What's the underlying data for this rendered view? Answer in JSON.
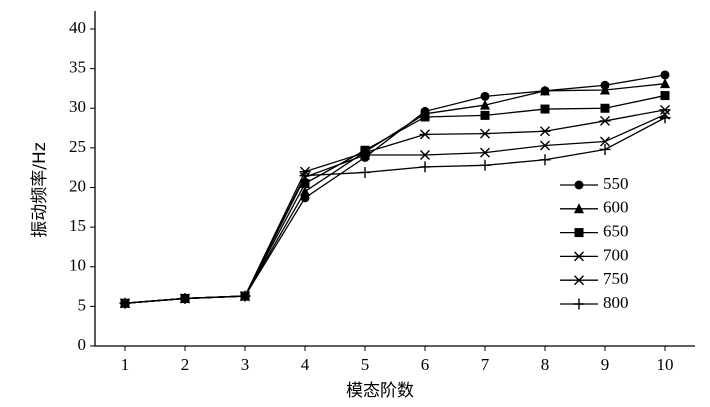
{
  "chart_data": {
    "type": "line",
    "x_label": "模态阶数",
    "y_label": "振动频率/Hz",
    "x": [
      1,
      2,
      3,
      4,
      5,
      6,
      7,
      8,
      9,
      10
    ],
    "xlim": [
      0.5,
      10.5
    ],
    "xticks": [
      1,
      2,
      3,
      4,
      5,
      6,
      7,
      8,
      9,
      10
    ],
    "ylim": [
      0,
      40
    ],
    "yticks": [
      0,
      5,
      10,
      15,
      20,
      25,
      30,
      35,
      40
    ],
    "grid": false,
    "legend": "right",
    "series": [
      {
        "name": "550",
        "color": "#000000",
        "marker": "circle",
        "values": [
          5.4,
          6.0,
          6.3,
          18.7,
          23.8,
          29.6,
          31.5,
          32.2,
          32.9,
          34.2
        ]
      },
      {
        "name": "600",
        "color": "#000000",
        "marker": "triangle",
        "values": [
          5.4,
          6.0,
          6.3,
          19.5,
          24.5,
          29.3,
          30.4,
          32.2,
          32.3,
          33.1
        ]
      },
      {
        "name": "650",
        "color": "#000000",
        "marker": "square",
        "values": [
          5.4,
          6.0,
          6.3,
          20.5,
          24.7,
          28.9,
          29.1,
          29.9,
          30.0,
          31.6
        ]
      },
      {
        "name": "700",
        "color": "#000000",
        "marker": "asterisk",
        "values": [
          5.4,
          6.0,
          6.3,
          22.0,
          24.4,
          26.7,
          26.8,
          27.1,
          28.4,
          29.8
        ]
      },
      {
        "name": "750",
        "color": "#000000",
        "marker": "x",
        "values": [
          5.4,
          6.0,
          6.3,
          21.3,
          24.1,
          24.1,
          24.4,
          25.3,
          25.8,
          29.2
        ]
      },
      {
        "name": "800",
        "color": "#000000",
        "marker": "plus",
        "values": [
          5.4,
          6.0,
          6.3,
          21.5,
          21.9,
          22.6,
          22.8,
          23.5,
          24.8,
          28.8
        ]
      }
    ]
  }
}
